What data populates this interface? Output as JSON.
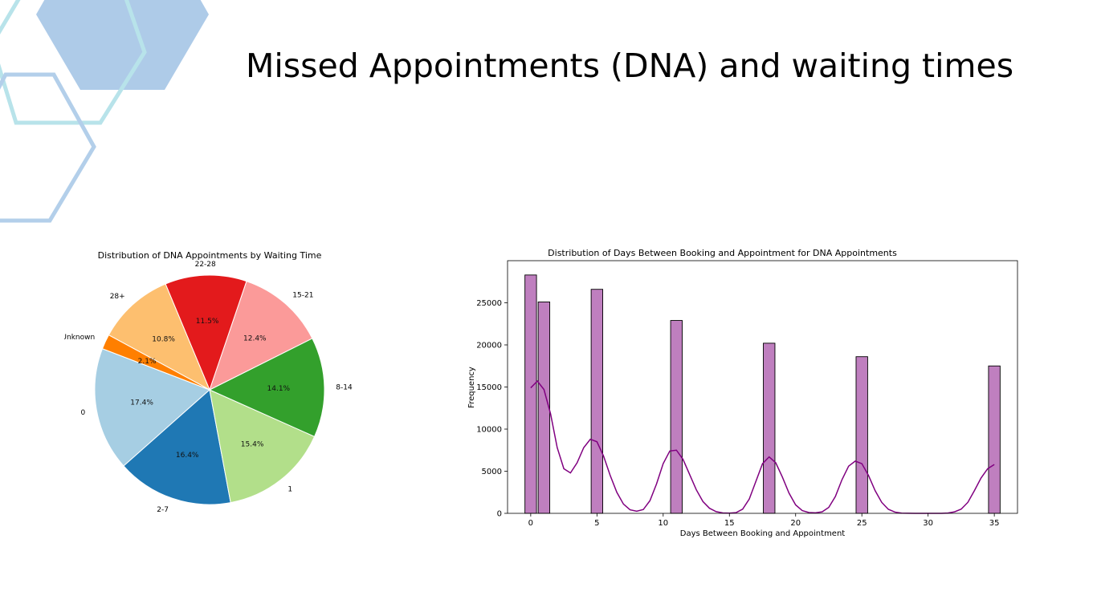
{
  "slide": {
    "title": "Missed Appointments (DNA) and waiting times",
    "decor_colors": {
      "fill": "#aecbe8",
      "outline_a": "#b8e3ea",
      "outline_b": "#b3cfea"
    }
  },
  "chart_data": [
    {
      "type": "pie",
      "title": "Distribution of DNA Appointments by Waiting Time",
      "slices": [
        {
          "label": "0",
          "pct": 17.4,
          "color": "#a6cee3"
        },
        {
          "label": "2-7",
          "pct": 16.4,
          "color": "#1f78b4"
        },
        {
          "label": "1",
          "pct": 15.4,
          "color": "#b2df8a"
        },
        {
          "label": "8-14",
          "pct": 14.1,
          "color": "#33a02c"
        },
        {
          "label": "15-21",
          "pct": 12.4,
          "color": "#fb9a99"
        },
        {
          "label": "22-28",
          "pct": 11.5,
          "color": "#e31a1c"
        },
        {
          "label": "28+",
          "pct": 10.8,
          "color": "#fdbf6f"
        },
        {
          "label": "Unknown",
          "pct": 2.1,
          "color": "#ff7f00"
        }
      ],
      "pct_labels": [
        "17.4%",
        "16.4%",
        "15.4%",
        "14.1%",
        "12.4%",
        "11.5%",
        "10.8%",
        "2.1%"
      ]
    },
    {
      "type": "bar",
      "title": "Distribution of Days Between Booking and Appointment for DNA Appointments",
      "xlabel": "Days Between Booking and Appointment",
      "ylabel": "Frequency",
      "xlim": [
        -1.75,
        36.75
      ],
      "ylim": [
        0,
        30000
      ],
      "xticks": [
        0,
        5,
        10,
        15,
        20,
        25,
        30,
        35
      ],
      "yticks": [
        0,
        5000,
        10000,
        15000,
        20000,
        25000
      ],
      "bin_width": 0.875,
      "bars": [
        {
          "x": 0,
          "value": 28300
        },
        {
          "x": 1,
          "value": 25100
        },
        {
          "x": 5,
          "value": 26600
        },
        {
          "x": 11,
          "value": 22900
        },
        {
          "x": 18,
          "value": 20200
        },
        {
          "x": 25,
          "value": 18600
        },
        {
          "x": 35,
          "value": 17500
        }
      ],
      "bar_color": "#bf7fbf",
      "kde_color": "#800080",
      "kde_points": [
        [
          0,
          14900
        ],
        [
          0.5,
          15700
        ],
        [
          1,
          14700
        ],
        [
          1.5,
          11800
        ],
        [
          2,
          7800
        ],
        [
          2.5,
          5300
        ],
        [
          3,
          4800
        ],
        [
          3.5,
          6000
        ],
        [
          4,
          7800
        ],
        [
          4.5,
          8800
        ],
        [
          5,
          8500
        ],
        [
          5.5,
          6800
        ],
        [
          6,
          4500
        ],
        [
          6.5,
          2500
        ],
        [
          7,
          1100
        ],
        [
          7.5,
          420
        ],
        [
          8,
          250
        ],
        [
          8.5,
          450
        ],
        [
          9,
          1500
        ],
        [
          9.5,
          3500
        ],
        [
          10,
          5900
        ],
        [
          10.5,
          7400
        ],
        [
          11,
          7500
        ],
        [
          11.5,
          6400
        ],
        [
          12,
          4600
        ],
        [
          12.5,
          2800
        ],
        [
          13,
          1400
        ],
        [
          13.5,
          600
        ],
        [
          14,
          200
        ],
        [
          14.5,
          50
        ],
        [
          15,
          20
        ],
        [
          15.5,
          80
        ],
        [
          16,
          500
        ],
        [
          16.5,
          1700
        ],
        [
          17,
          3800
        ],
        [
          17.5,
          5900
        ],
        [
          18,
          6700
        ],
        [
          18.5,
          6000
        ],
        [
          19,
          4300
        ],
        [
          19.5,
          2400
        ],
        [
          20,
          1000
        ],
        [
          20.5,
          330
        ],
        [
          21,
          100
        ],
        [
          21.5,
          60
        ],
        [
          22,
          180
        ],
        [
          22.5,
          700
        ],
        [
          23,
          2000
        ],
        [
          23.5,
          4000
        ],
        [
          24,
          5600
        ],
        [
          24.5,
          6200
        ],
        [
          25,
          5900
        ],
        [
          25.5,
          4500
        ],
        [
          26,
          2700
        ],
        [
          26.5,
          1300
        ],
        [
          27,
          480
        ],
        [
          27.5,
          150
        ],
        [
          28,
          30
        ],
        [
          29,
          0
        ],
        [
          30,
          0
        ],
        [
          31,
          0
        ],
        [
          31.5,
          40
        ],
        [
          32,
          180
        ],
        [
          32.5,
          500
        ],
        [
          33,
          1300
        ],
        [
          33.5,
          2700
        ],
        [
          34,
          4200
        ],
        [
          34.5,
          5300
        ],
        [
          35,
          5800
        ]
      ]
    }
  ]
}
